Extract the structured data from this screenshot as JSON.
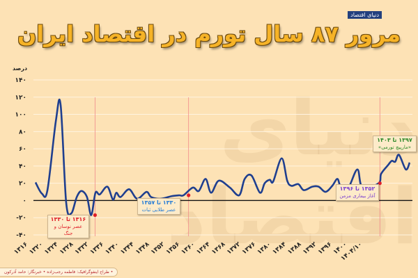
{
  "logo": "دنیای اقتصاد",
  "chart_data": {
    "type": "line",
    "title": "مرور ۸۷ سال تورم در اقتصاد ایران",
    "ylabel": "درصد",
    "xlabel": "",
    "ylim": [
      -40,
      140
    ],
    "xlim": [
      1316,
      1404
    ],
    "grid": true,
    "y_ticks": [
      140,
      120,
      100,
      80,
      60,
      40,
      20,
      0,
      -20,
      -40
    ],
    "y_tick_labels": [
      "۱۴۰",
      "۱۲۰",
      "۱۰۰",
      "۸۰",
      "۶۰",
      "۴۰",
      "۲۰",
      "۰",
      "-۲۰",
      "-۴۰"
    ],
    "x_ticks": [
      1316,
      1320,
      1324,
      1328,
      1332,
      1336,
      1340,
      1344,
      1348,
      1352,
      1356,
      1360,
      1364,
      1368,
      1372,
      1376,
      1380,
      1384,
      1388,
      1392,
      1396,
      1400,
      1404
    ],
    "x_tick_labels": [
      "۱۳۱۶",
      "۱۳۲۰",
      "۱۳۲۴",
      "۱۳۲۸",
      "۱۳۳۲",
      "۱۳۳۶",
      "۱۳۴۰",
      "۱۳۴۴",
      "۱۳۴۸",
      "۱۳۵۲",
      "۱۳۵۶",
      "۱۳۶۰",
      "۱۳۶۴",
      "۱۳۶۸",
      "۱۳۷۲",
      "۱۳۷۶",
      "۱۳۸۰",
      "۱۳۸۴",
      "۱۳۸۸",
      "۱۳۹۲",
      "۱۳۹۶",
      "۱۴۰۰",
      "۱۴۰۴/۱۰"
    ],
    "x": [
      1316,
      1317.5,
      1318.8,
      1320.8,
      1321.9,
      1323.2,
      1324.4,
      1325.7,
      1326.8,
      1328.1,
      1329.1,
      1330.1,
      1331.1,
      1332.9,
      1334.2,
      1335,
      1336,
      1338,
      1339.9,
      1342.1,
      1343.2,
      1345.5,
      1348,
      1349.8,
      1350.8,
      1353,
      1354.4,
      1356,
      1357.3,
      1359.1,
      1361.7,
      1363.9,
      1365.2,
      1366.8,
      1368.8,
      1369.9,
      1371.1,
      1371.9,
      1373.9,
      1375.2,
      1376.2,
      1377.8,
      1379.1,
      1381.1,
      1382.6,
      1384.2,
      1385.8,
      1387,
      1387.8,
      1389.5,
      1391.7,
      1392.9,
      1396.7,
      1397.3,
      1398.9,
      1399.8,
      1400.6,
      1401.5,
      1403.1,
      1404
    ],
    "y": [
      21,
      8,
      12,
      93,
      111,
      -2,
      -15,
      4,
      11,
      4,
      -17,
      9,
      7,
      16,
      1,
      9,
      4,
      13,
      2,
      10,
      4,
      2,
      5,
      6,
      6,
      15,
      11,
      25,
      9,
      23,
      15,
      6,
      25,
      29,
      9,
      20,
      24,
      22,
      49,
      23,
      17,
      19,
      12,
      16,
      16,
      10,
      17,
      25,
      16,
      14,
      36,
      15,
      20,
      31,
      41,
      46,
      45,
      53,
      36,
      44
    ],
    "color": "#1f3f8f",
    "markers": [
      {
        "year": 1330,
        "value": -17,
        "color": "#e0202a"
      },
      {
        "year": 1352,
        "value": 6,
        "color": "#e0202a"
      },
      {
        "year": 1397,
        "value": 20,
        "color": "#e0202a"
      }
    ],
    "annotations": [
      {
        "period": "۱۳۱۶ تا ۱۳۳۰",
        "label": "عصر نوسان و جنگ",
        "color": "#e0202a"
      },
      {
        "period": "۱۳۳۰ تا ۱۳۵۷",
        "label": "عصر طلایی ثبات",
        "color": "#2a7fd6"
      },
      {
        "period": "۱۳۵۲ تا ۱۳۹۶",
        "label": "آغاز بیماری مزمن",
        "color": "#7b3fd0"
      },
      {
        "period": "۱۳۹۷ تا ۱۴۰۳",
        "label": "«مارپیچ تورمی»",
        "color": "#2f8a2a"
      }
    ]
  },
  "footer": "• طراح اینفوگرافیک: فاطمه رجب‌زاده • خبرنگار: حامد آذرکون"
}
